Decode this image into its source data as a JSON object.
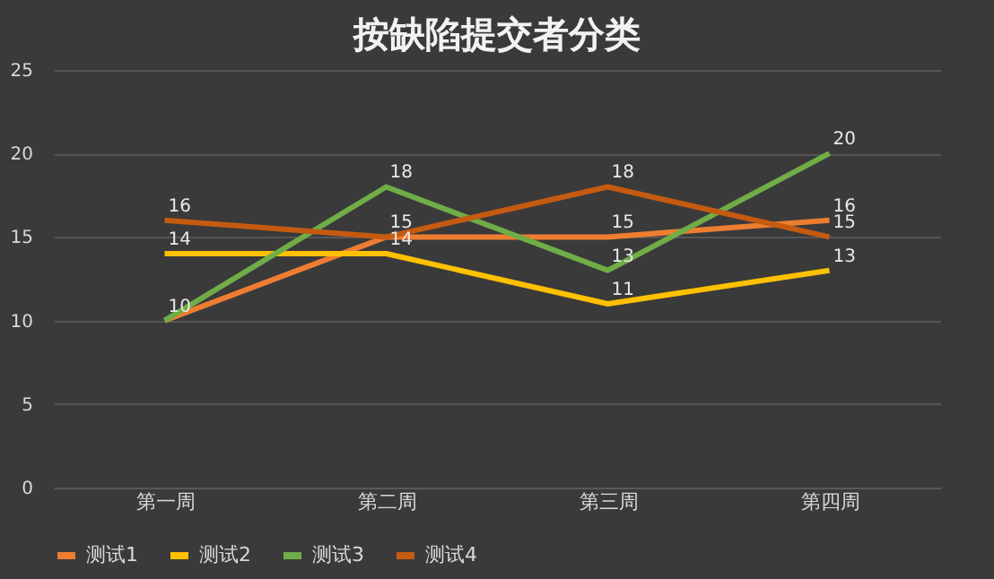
{
  "chart_data": {
    "type": "line",
    "title": "按缺陷提交者分类",
    "categories": [
      "第一周",
      "第二周",
      "第三周",
      "第四周"
    ],
    "series": [
      {
        "name": "测试1",
        "color": "#ed7d31",
        "values": [
          10,
          15,
          15,
          16
        ],
        "value_labels": [
          "10",
          "15",
          "15",
          "16"
        ]
      },
      {
        "name": "测试2",
        "color": "#ffc000",
        "values": [
          14,
          14,
          11,
          13
        ],
        "value_labels": [
          "14",
          "14",
          "11",
          "13"
        ]
      },
      {
        "name": "测试3",
        "color": "#70ad47",
        "values": [
          10,
          18,
          13,
          20
        ],
        "value_labels": [
          null,
          "18",
          "13",
          "20"
        ]
      },
      {
        "name": "测试4",
        "color": "#c55a11",
        "values": [
          16,
          15,
          18,
          15
        ],
        "value_labels": [
          "16",
          null,
          "18",
          "15"
        ]
      }
    ],
    "ylim": [
      0,
      25
    ],
    "yticks": [
      0,
      5,
      10,
      15,
      20,
      25
    ],
    "grid": "y",
    "legend": "bottom",
    "marker": "none",
    "line_style": "solid"
  }
}
